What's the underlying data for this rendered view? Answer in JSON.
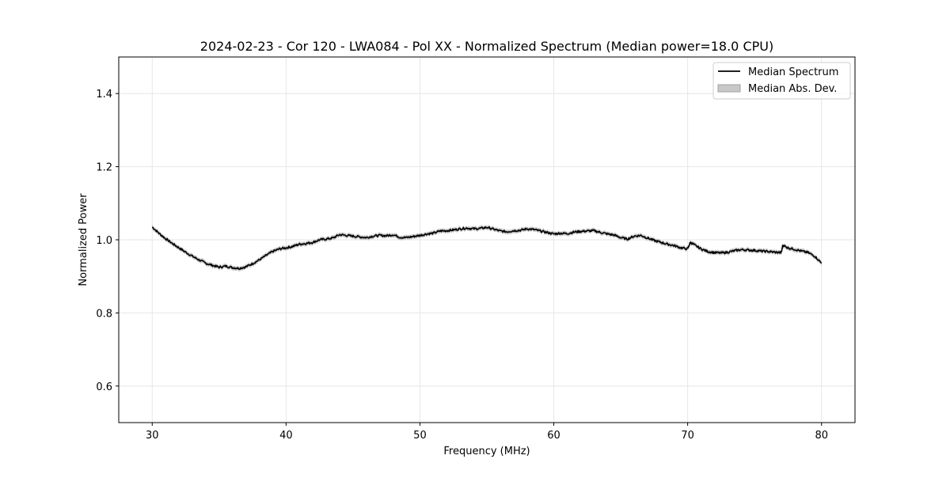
{
  "chart_data": {
    "type": "line",
    "title": "2024-02-23 - Cor 120 - LWA084 - Pol XX - Normalized Spectrum (Median power=18.0 CPU)",
    "xlabel": "Frequency (MHz)",
    "ylabel": "Normalized Power",
    "xlim": [
      27.5,
      82.5
    ],
    "ylim": [
      0.5,
      1.5
    ],
    "xticks": [
      30,
      40,
      50,
      60,
      70,
      80
    ],
    "yticks": [
      0.6,
      0.8,
      1.0,
      1.2,
      1.4
    ],
    "xtick_labels": [
      "30",
      "40",
      "50",
      "60",
      "70",
      "80"
    ],
    "ytick_labels": [
      "0.6",
      "0.8",
      "1.0",
      "1.2",
      "1.4"
    ],
    "grid": true,
    "legend_position": "top-right",
    "legend": [
      "Median Spectrum",
      "Median Abs. Dev."
    ],
    "series": [
      {
        "name": "Median Spectrum",
        "color": "#000000",
        "mad_color": "#b5b5b5",
        "mad_width": 0.006,
        "x": [
          30.0,
          30.5,
          31.0,
          31.5,
          32.0,
          32.5,
          33.0,
          33.5,
          34.0,
          34.5,
          35.0,
          35.5,
          36.0,
          36.5,
          37.0,
          37.5,
          38.0,
          38.5,
          39.0,
          39.5,
          40.0,
          40.5,
          41.0,
          41.5,
          42.0,
          42.5,
          43.0,
          43.5,
          44.0,
          44.5,
          45.0,
          45.5,
          46.0,
          46.5,
          47.0,
          47.5,
          48.0,
          48.5,
          49.0,
          49.5,
          50.0,
          50.5,
          51.0,
          51.5,
          52.0,
          52.5,
          53.0,
          53.5,
          54.0,
          54.5,
          55.0,
          55.5,
          56.0,
          56.5,
          57.0,
          57.5,
          58.0,
          58.5,
          59.0,
          59.5,
          60.0,
          60.5,
          61.0,
          61.5,
          62.0,
          62.5,
          63.0,
          63.5,
          64.0,
          64.5,
          65.0,
          65.5,
          66.0,
          66.5,
          67.0,
          67.5,
          68.0,
          68.5,
          69.0,
          69.5,
          70.0,
          70.2,
          70.5,
          71.0,
          71.5,
          72.0,
          72.5,
          73.0,
          73.5,
          74.0,
          74.5,
          75.0,
          75.5,
          76.0,
          76.5,
          77.0,
          77.1,
          77.5,
          78.0,
          78.5,
          79.0,
          79.5,
          80.0
        ],
        "values": [
          1.035,
          1.018,
          1.003,
          0.99,
          0.978,
          0.966,
          0.955,
          0.945,
          0.936,
          0.93,
          0.925,
          0.928,
          0.924,
          0.922,
          0.926,
          0.935,
          0.945,
          0.957,
          0.968,
          0.975,
          0.978,
          0.982,
          0.988,
          0.99,
          0.993,
          1.0,
          1.002,
          1.005,
          1.014,
          1.012,
          1.01,
          1.008,
          1.006,
          1.01,
          1.012,
          1.011,
          1.014,
          1.007,
          1.006,
          1.009,
          1.012,
          1.016,
          1.018,
          1.024,
          1.025,
          1.027,
          1.03,
          1.032,
          1.03,
          1.031,
          1.034,
          1.029,
          1.024,
          1.022,
          1.025,
          1.026,
          1.03,
          1.028,
          1.024,
          1.02,
          1.016,
          1.018,
          1.017,
          1.021,
          1.023,
          1.024,
          1.025,
          1.02,
          1.016,
          1.013,
          1.006,
          1.002,
          1.01,
          1.012,
          1.005,
          0.998,
          0.993,
          0.988,
          0.984,
          0.978,
          0.975,
          0.993,
          0.986,
          0.975,
          0.968,
          0.965,
          0.964,
          0.966,
          0.97,
          0.973,
          0.972,
          0.971,
          0.969,
          0.968,
          0.966,
          0.965,
          0.985,
          0.978,
          0.974,
          0.969,
          0.965,
          0.955,
          0.936
        ]
      }
    ]
  }
}
